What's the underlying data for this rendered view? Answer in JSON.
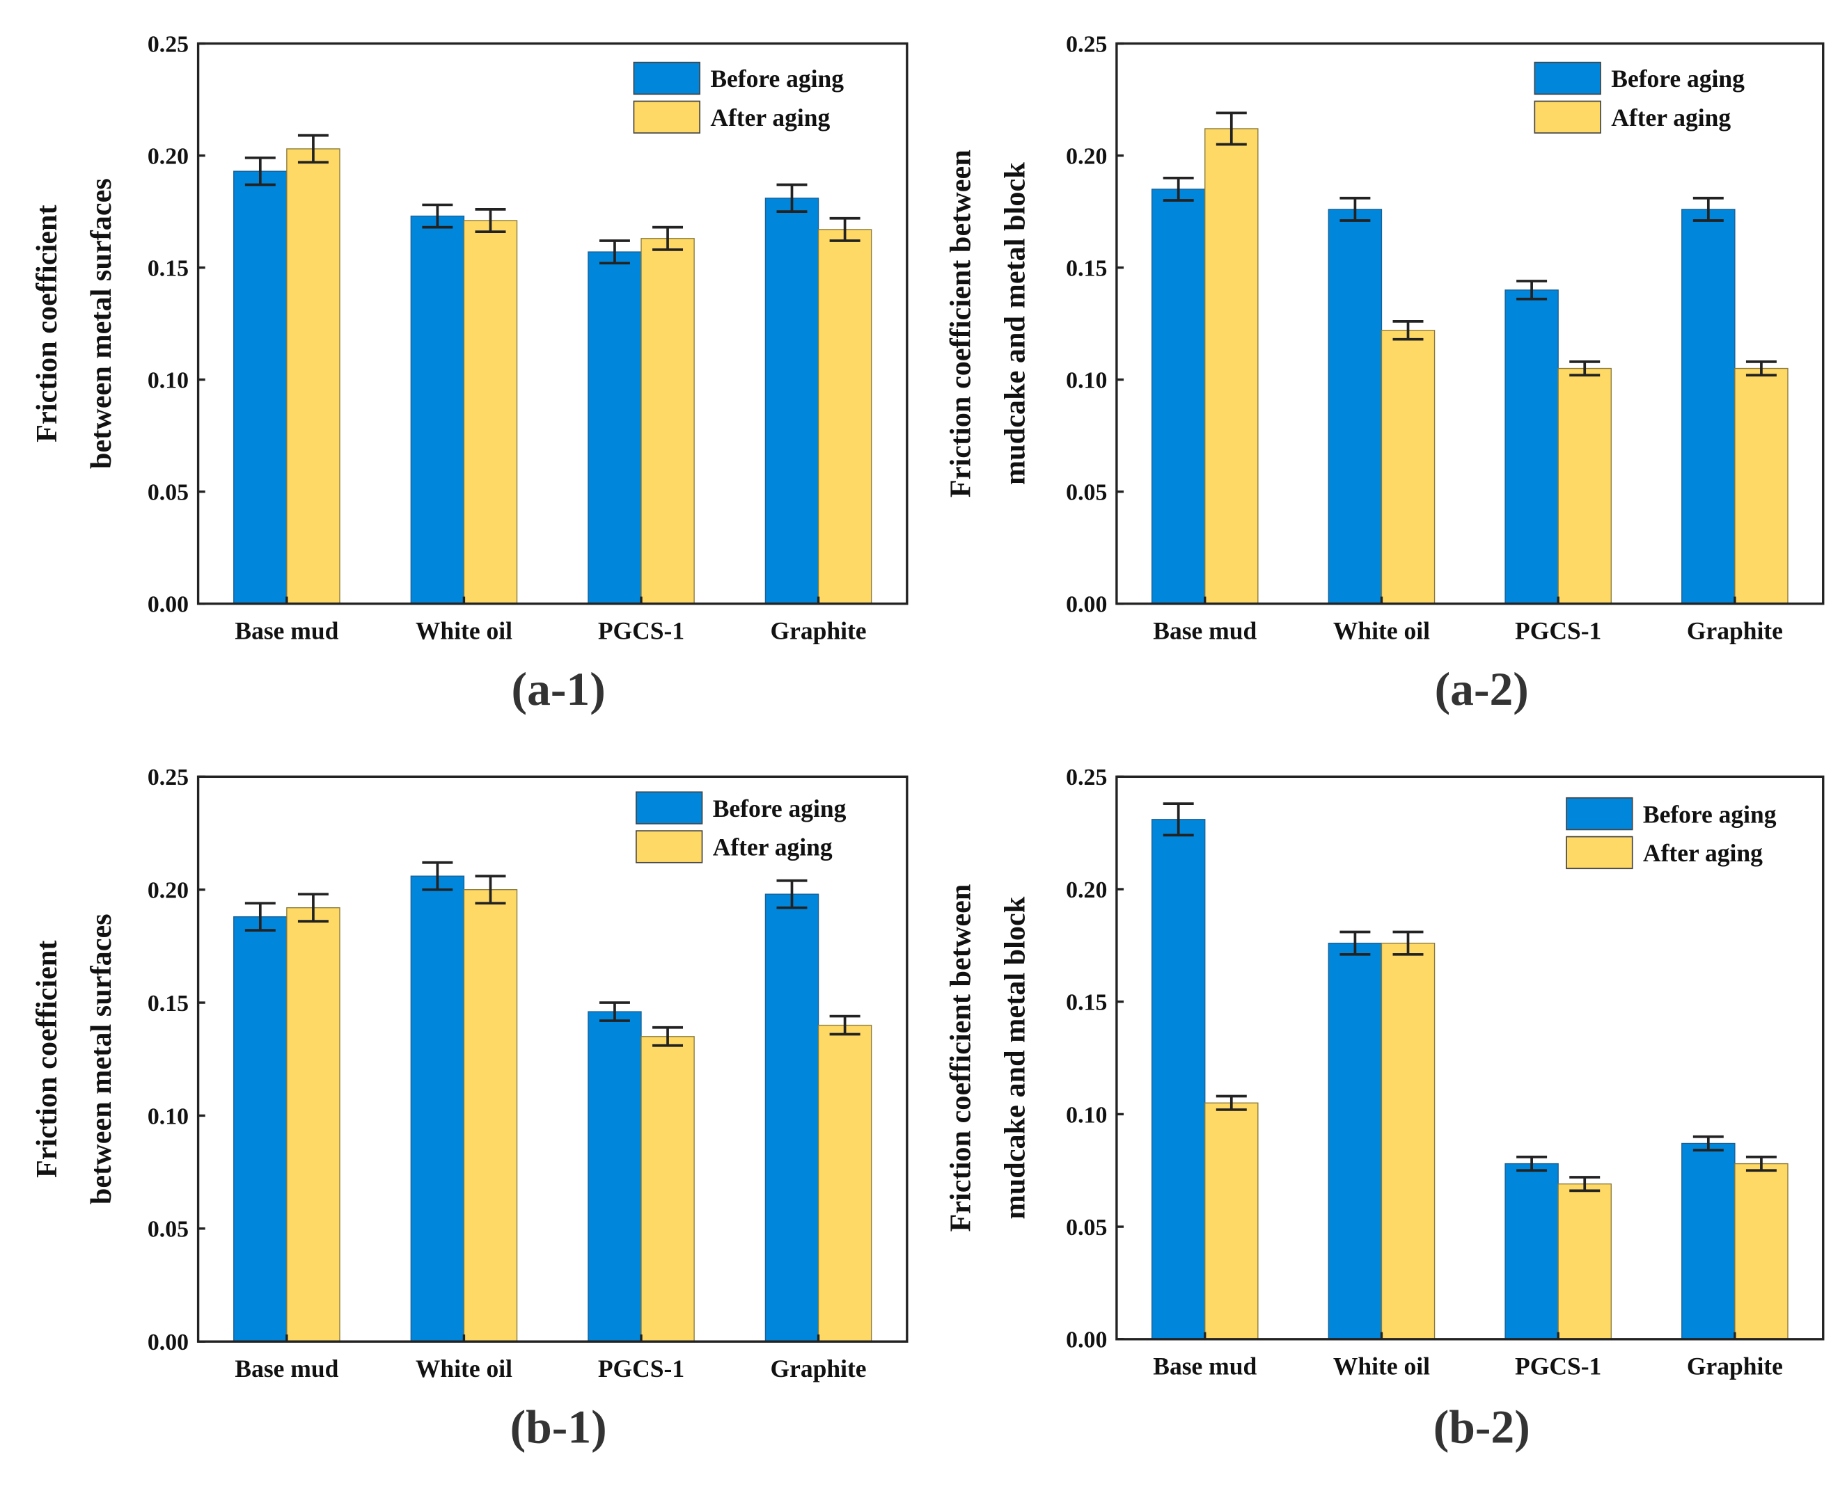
{
  "colors": {
    "before": "#0087DC",
    "after": "#FFD966",
    "axis": "#222222"
  },
  "chart_data": [
    {
      "type": "bar",
      "panel_label": "(a-1)",
      "ylabel": [
        "Friction coefficient",
        "between  metal  surfaces"
      ],
      "categories": [
        "Base mud",
        "White oil",
        "PGCS-1",
        "Graphite"
      ],
      "ylim": [
        0,
        0.25
      ],
      "yticks": [
        "0.00",
        "0.05",
        "0.10",
        "0.15",
        "0.20",
        "0.25"
      ],
      "legend_position": "top-right",
      "series": [
        {
          "name": "Before aging",
          "values": [
            0.193,
            0.173,
            0.157,
            0.181
          ],
          "errors": [
            0.006,
            0.005,
            0.005,
            0.006
          ]
        },
        {
          "name": "After aging",
          "values": [
            0.203,
            0.171,
            0.163,
            0.167
          ],
          "errors": [
            0.006,
            0.005,
            0.005,
            0.005
          ]
        }
      ]
    },
    {
      "type": "bar",
      "panel_label": "(a-2)",
      "ylabel": [
        "Friction coefficient between",
        "mudcake and  metal block"
      ],
      "categories": [
        "Base mud",
        "White oil",
        "PGCS-1",
        "Graphite"
      ],
      "ylim": [
        0,
        0.25
      ],
      "yticks": [
        "0.00",
        "0.05",
        "0.10",
        "0.15",
        "0.20",
        "0.25"
      ],
      "legend_position": "top-right",
      "series": [
        {
          "name": "Before aging",
          "values": [
            0.185,
            0.176,
            0.14,
            0.176
          ],
          "errors": [
            0.005,
            0.005,
            0.004,
            0.005
          ]
        },
        {
          "name": "After aging",
          "values": [
            0.212,
            0.122,
            0.105,
            0.105
          ],
          "errors": [
            0.007,
            0.004,
            0.003,
            0.003
          ]
        }
      ]
    },
    {
      "type": "bar",
      "panel_label": "(b-1)",
      "ylabel": [
        "Friction coefficient",
        "between  metal  surfaces"
      ],
      "categories": [
        "Base mud",
        "White oil",
        "PGCS-1",
        "Graphite"
      ],
      "ylim": [
        0,
        0.25
      ],
      "yticks": [
        "0.00",
        "0.05",
        "0.10",
        "0.15",
        "0.20",
        "0.25"
      ],
      "legend_position": "top-right",
      "series": [
        {
          "name": "Before aging",
          "values": [
            0.188,
            0.206,
            0.146,
            0.198
          ],
          "errors": [
            0.006,
            0.006,
            0.004,
            0.006
          ]
        },
        {
          "name": "After aging",
          "values": [
            0.192,
            0.2,
            0.135,
            0.14
          ],
          "errors": [
            0.006,
            0.006,
            0.004,
            0.004
          ]
        }
      ]
    },
    {
      "type": "bar",
      "panel_label": "(b-2)",
      "ylabel": [
        "Friction coefficient between",
        "mudcake and  metal block"
      ],
      "categories": [
        "Base mud",
        "White oil",
        "PGCS-1",
        "Graphite"
      ],
      "ylim": [
        0,
        0.25
      ],
      "yticks": [
        "0.00",
        "0.05",
        "0.10",
        "0.15",
        "0.20",
        "0.25"
      ],
      "legend_position": "top-right",
      "series": [
        {
          "name": "Before aging",
          "values": [
            0.231,
            0.176,
            0.078,
            0.087
          ],
          "errors": [
            0.007,
            0.005,
            0.003,
            0.003
          ]
        },
        {
          "name": "After aging",
          "values": [
            0.105,
            0.176,
            0.069,
            0.078
          ],
          "errors": [
            0.003,
            0.005,
            0.003,
            0.003
          ]
        }
      ]
    }
  ]
}
